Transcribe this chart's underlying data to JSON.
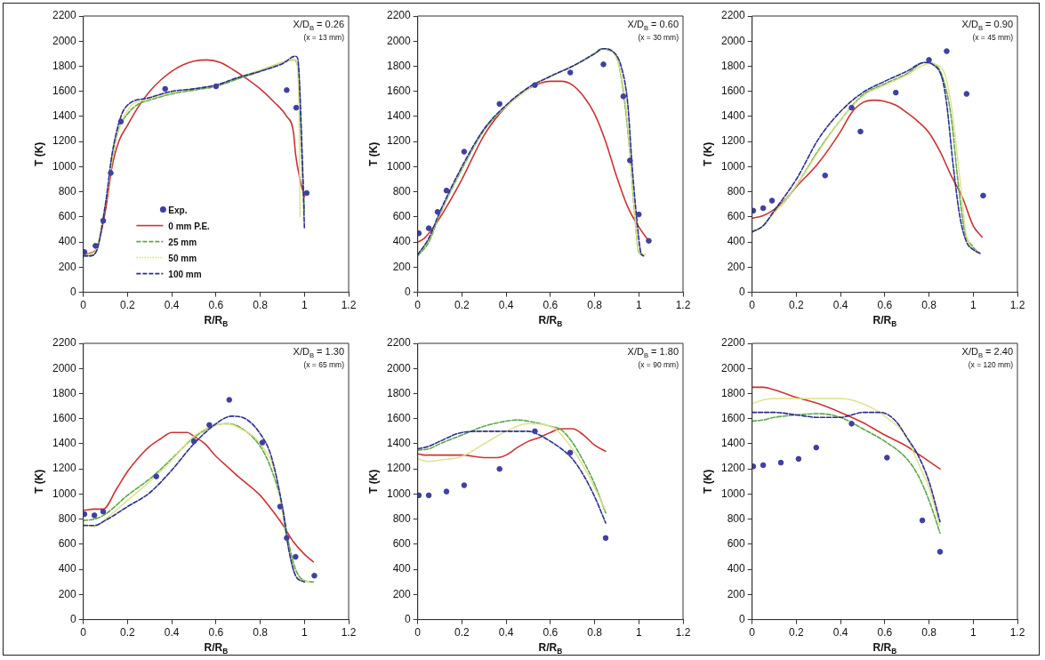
{
  "chart_data": [
    {
      "type": "line",
      "xlabel": "R/R$_{B}$",
      "ylabel": "T (K)",
      "annotations": [
        "X/D$_{B}$ = 0.26",
        "(x = 13 mm)"
      ],
      "xlim": [
        0,
        1.2
      ],
      "xticks": [
        0,
        0.2,
        0.4,
        0.6,
        0.8,
        1,
        1.2
      ],
      "ylim": [
        0,
        2200
      ],
      "yticks": [
        0,
        200,
        400,
        600,
        800,
        1000,
        1200,
        1400,
        1600,
        1800,
        2000,
        2200
      ],
      "grid": false,
      "legend": "bottom left",
      "series": [
        {
          "name": "Exp.",
          "type": "scatter",
          "marker": "circle",
          "color": "#4040a0",
          "x": [
            0.005,
            0.055,
            0.09,
            0.124,
            0.17,
            0.37,
            0.6,
            0.92,
            0.963,
            1.01
          ],
          "values": [
            320,
            370,
            570,
            950,
            1360,
            1620,
            1640,
            1610,
            1470,
            790
          ]
        },
        {
          "name": "0 mm P.E.",
          "line_style": "solid",
          "color": "#cc3333",
          "x": [
            0,
            0.03,
            0.06,
            0.1,
            0.13,
            0.16,
            0.2,
            0.25,
            0.3,
            0.35,
            0.4,
            0.45,
            0.5,
            0.56,
            0.62,
            0.68,
            0.74,
            0.8,
            0.86,
            0.92,
            0.95,
            0.96,
            0.98,
            1.0
          ],
          "values": [
            300,
            310,
            350,
            650,
            1000,
            1200,
            1330,
            1480,
            1600,
            1690,
            1760,
            1810,
            1840,
            1850,
            1830,
            1770,
            1700,
            1620,
            1520,
            1400,
            1280,
            1100,
            900,
            760
          ]
        },
        {
          "name": "25 mm",
          "line_style": "dashed",
          "color": "#5aa84a",
          "x": [
            0,
            0.03,
            0.06,
            0.1,
            0.13,
            0.16,
            0.2,
            0.25,
            0.3,
            0.4,
            0.5,
            0.6,
            0.7,
            0.8,
            0.9,
            0.95,
            0.97,
            0.99,
            1.0
          ],
          "values": [
            290,
            290,
            340,
            700,
            1050,
            1300,
            1420,
            1500,
            1530,
            1580,
            1610,
            1640,
            1700,
            1760,
            1830,
            1850,
            1800,
            1000,
            650
          ]
        },
        {
          "name": "50 mm",
          "line_style": "dotted",
          "color": "#e0e08a",
          "x": [
            0,
            0.05,
            0.1,
            0.14,
            0.2,
            0.3,
            0.4,
            0.5,
            0.6,
            0.7,
            0.8,
            0.9,
            0.96,
            0.975,
            0.98
          ],
          "values": [
            300,
            320,
            700,
            1150,
            1450,
            1540,
            1590,
            1620,
            1650,
            1710,
            1770,
            1830,
            1850,
            1500,
            600
          ]
        },
        {
          "name": "100 mm",
          "line_style": "dashed",
          "color": "#2b2e8a",
          "x": [
            0,
            0.03,
            0.06,
            0.1,
            0.13,
            0.17,
            0.2,
            0.3,
            0.4,
            0.5,
            0.6,
            0.7,
            0.8,
            0.9,
            0.96,
            0.97,
            0.99,
            1.0
          ],
          "values": [
            290,
            290,
            330,
            700,
            1100,
            1400,
            1490,
            1550,
            1600,
            1620,
            1650,
            1710,
            1760,
            1820,
            1880,
            1860,
            1100,
            510
          ]
        }
      ]
    },
    {
      "type": "line",
      "xlabel": "R/R$_{B}$",
      "ylabel": "T (K)",
      "annotations": [
        "X/D$_{B}$ = 0.60",
        "(x = 30 mm)"
      ],
      "xlim": [
        0,
        1.2
      ],
      "xticks": [
        0,
        0.2,
        0.4,
        0.6,
        0.8,
        1,
        1.2
      ],
      "ylim": [
        0,
        2200
      ],
      "yticks": [
        0,
        200,
        400,
        600,
        800,
        1000,
        1200,
        1400,
        1600,
        1800,
        2000,
        2200
      ],
      "grid": false,
      "series": [
        {
          "type": "scatter",
          "marker": "circle",
          "color": "#4040a0",
          "x": [
            0.005,
            0.05,
            0.09,
            0.13,
            0.21,
            0.37,
            0.53,
            0.69,
            0.84,
            0.93,
            0.96,
            1.0,
            1.045
          ],
          "values": [
            470,
            510,
            640,
            810,
            1120,
            1500,
            1650,
            1750,
            1815,
            1560,
            1050,
            620,
            410
          ]
        },
        {
          "line_style": "solid",
          "color": "#cc3333",
          "x": [
            0,
            0.03,
            0.08,
            0.12,
            0.2,
            0.3,
            0.4,
            0.5,
            0.6,
            0.65,
            0.7,
            0.75,
            0.8,
            0.85,
            0.9,
            0.95,
            1.0,
            1.04
          ],
          "values": [
            400,
            430,
            540,
            650,
            900,
            1250,
            1480,
            1620,
            1680,
            1680,
            1650,
            1560,
            1420,
            1200,
            920,
            680,
            520,
            420
          ]
        },
        {
          "line_style": "dashed",
          "color": "#5aa84a",
          "x": [
            0,
            0.05,
            0.1,
            0.2,
            0.3,
            0.4,
            0.5,
            0.6,
            0.7,
            0.8,
            0.83,
            0.86,
            0.9,
            0.93,
            0.96,
            0.98,
            1.0,
            1.03
          ],
          "values": [
            290,
            400,
            620,
            980,
            1290,
            1480,
            1620,
            1720,
            1800,
            1900,
            1940,
            1930,
            1870,
            1600,
            1100,
            650,
            320,
            290
          ]
        },
        {
          "line_style": "dotted",
          "color": "#e0e08a",
          "x": [
            0,
            0.05,
            0.1,
            0.2,
            0.3,
            0.4,
            0.5,
            0.6,
            0.7,
            0.8,
            0.84,
            0.9,
            0.94,
            0.97,
            1.0,
            1.03
          ],
          "values": [
            300,
            420,
            630,
            990,
            1300,
            1480,
            1620,
            1720,
            1800,
            1900,
            1940,
            1860,
            1500,
            900,
            330,
            300
          ]
        },
        {
          "line_style": "dashed",
          "color": "#2b2e8a",
          "x": [
            0,
            0.05,
            0.1,
            0.2,
            0.3,
            0.4,
            0.5,
            0.6,
            0.7,
            0.8,
            0.84,
            0.88,
            0.92,
            0.95,
            0.97,
            0.99,
            1.01,
            1.02
          ],
          "values": [
            300,
            430,
            640,
            1000,
            1300,
            1490,
            1630,
            1720,
            1800,
            1900,
            1940,
            1920,
            1800,
            1500,
            1000,
            600,
            310,
            290
          ]
        }
      ]
    },
    {
      "type": "line",
      "xlabel": "R/R$_{B}$",
      "ylabel": "T (K)",
      "annotations": [
        "X/D$_{B}$ = 0.90",
        "(x = 45 mm)"
      ],
      "xlim": [
        0,
        1.2
      ],
      "xticks": [
        0,
        0.2,
        0.4,
        0.6,
        0.8,
        1,
        1.2
      ],
      "ylim": [
        0,
        2200
      ],
      "yticks": [
        0,
        200,
        400,
        600,
        800,
        1000,
        1200,
        1400,
        1600,
        1800,
        2000,
        2200
      ],
      "grid": false,
      "series": [
        {
          "type": "scatter",
          "marker": "circle",
          "color": "#4040a0",
          "x": [
            0.005,
            0.05,
            0.09,
            0.33,
            0.45,
            0.49,
            0.65,
            0.8,
            0.88,
            0.97,
            1.045
          ],
          "values": [
            650,
            670,
            730,
            930,
            1470,
            1280,
            1590,
            1850,
            1920,
            1580,
            770
          ]
        },
        {
          "line_style": "solid",
          "color": "#cc3333",
          "x": [
            0,
            0.05,
            0.1,
            0.15,
            0.2,
            0.3,
            0.4,
            0.45,
            0.5,
            0.55,
            0.6,
            0.65,
            0.7,
            0.75,
            0.8,
            0.85,
            0.9,
            0.95,
            1.0,
            1.04
          ],
          "values": [
            590,
            610,
            660,
            740,
            840,
            1030,
            1280,
            1430,
            1510,
            1530,
            1520,
            1490,
            1430,
            1360,
            1270,
            1120,
            930,
            760,
            530,
            440
          ]
        },
        {
          "line_style": "dashed",
          "color": "#5aa84a",
          "x": [
            0,
            0.05,
            0.1,
            0.15,
            0.2,
            0.3,
            0.4,
            0.5,
            0.6,
            0.7,
            0.78,
            0.82,
            0.86,
            0.9,
            0.93,
            0.96,
            1.0,
            1.03
          ],
          "values": [
            480,
            530,
            640,
            730,
            850,
            1130,
            1370,
            1570,
            1660,
            1740,
            1830,
            1820,
            1720,
            1400,
            900,
            500,
            360,
            310
          ]
        },
        {
          "line_style": "dotted",
          "color": "#e0e08a",
          "x": [
            0,
            0.05,
            0.1,
            0.2,
            0.3,
            0.4,
            0.5,
            0.6,
            0.7,
            0.8,
            0.86,
            0.9,
            0.94,
            0.97,
            1.03
          ],
          "values": [
            480,
            530,
            630,
            850,
            1120,
            1370,
            1560,
            1650,
            1730,
            1820,
            1780,
            1500,
            900,
            450,
            310
          ]
        },
        {
          "line_style": "dashed",
          "color": "#2b2e8a",
          "x": [
            0,
            0.05,
            0.1,
            0.2,
            0.3,
            0.4,
            0.5,
            0.6,
            0.7,
            0.78,
            0.82,
            0.86,
            0.88,
            0.91,
            0.94,
            0.97,
            1.0,
            1.03
          ],
          "values": [
            480,
            530,
            650,
            900,
            1220,
            1440,
            1590,
            1680,
            1760,
            1830,
            1810,
            1700,
            1500,
            1000,
            600,
            400,
            340,
            310
          ]
        }
      ]
    },
    {
      "type": "line",
      "xlabel": "R/R$_{B}$",
      "ylabel": "T (K)",
      "annotations": [
        "X/D$_{B}$ = 1.30",
        "(x = 65 mm)"
      ],
      "xlim": [
        0,
        1.2
      ],
      "xticks": [
        0,
        0.2,
        0.4,
        0.6,
        0.8,
        1,
        1.2
      ],
      "ylim": [
        0,
        2200
      ],
      "yticks": [
        0,
        200,
        400,
        600,
        800,
        1000,
        1200,
        1400,
        1600,
        1800,
        2000,
        2200
      ],
      "grid": false,
      "series": [
        {
          "type": "scatter",
          "marker": "circle",
          "color": "#4040a0",
          "x": [
            0.005,
            0.05,
            0.09,
            0.33,
            0.5,
            0.57,
            0.66,
            0.81,
            0.89,
            0.92,
            0.96,
            1.045
          ],
          "values": [
            840,
            830,
            860,
            1140,
            1420,
            1550,
            1750,
            1410,
            900,
            650,
            500,
            350
          ]
        },
        {
          "line_style": "solid",
          "color": "#cc3333",
          "x": [
            0,
            0.05,
            0.09,
            0.15,
            0.2,
            0.25,
            0.3,
            0.35,
            0.4,
            0.47,
            0.5,
            0.55,
            0.6,
            0.65,
            0.7,
            0.8,
            0.85,
            0.9,
            0.95,
            1.0,
            1.04
          ],
          "values": [
            870,
            880,
            880,
            1040,
            1180,
            1290,
            1380,
            1440,
            1490,
            1490,
            1460,
            1400,
            1300,
            1220,
            1140,
            990,
            880,
            760,
            620,
            520,
            460
          ]
        },
        {
          "line_style": "dashed",
          "color": "#5aa84a",
          "x": [
            0,
            0.05,
            0.1,
            0.2,
            0.3,
            0.4,
            0.5,
            0.6,
            0.65,
            0.7,
            0.8,
            0.85,
            0.9,
            0.93,
            0.96,
            1.0,
            1.04
          ],
          "values": [
            790,
            800,
            840,
            990,
            1120,
            1280,
            1450,
            1550,
            1560,
            1540,
            1380,
            1200,
            900,
            600,
            400,
            310,
            300
          ]
        },
        {
          "line_style": "dotted",
          "color": "#e0e08a",
          "x": [
            0,
            0.05,
            0.1,
            0.2,
            0.3,
            0.4,
            0.5,
            0.6,
            0.65,
            0.7,
            0.8,
            0.87,
            0.92,
            0.96,
            1.02
          ],
          "values": [
            760,
            740,
            800,
            950,
            1100,
            1270,
            1460,
            1550,
            1560,
            1530,
            1400,
            1150,
            650,
            350,
            300
          ]
        },
        {
          "line_style": "dashed",
          "color": "#2b2e8a",
          "x": [
            0,
            0.05,
            0.1,
            0.2,
            0.3,
            0.4,
            0.5,
            0.6,
            0.67,
            0.72,
            0.8,
            0.85,
            0.9,
            0.93,
            0.96,
            1.0
          ],
          "values": [
            750,
            750,
            790,
            900,
            1010,
            1190,
            1400,
            1560,
            1620,
            1610,
            1480,
            1300,
            900,
            550,
            350,
            300
          ]
        }
      ]
    },
    {
      "type": "line",
      "xlabel": "R/R$_{B}$",
      "ylabel": "T (K)",
      "annotations": [
        "X/D$_{B}$ = 1.80",
        "(x = 90 mm)"
      ],
      "xlim": [
        0,
        1.2
      ],
      "xticks": [
        0,
        0.2,
        0.4,
        0.6,
        0.8,
        1,
        1.2
      ],
      "ylim": [
        0,
        2200
      ],
      "yticks": [
        0,
        200,
        400,
        600,
        800,
        1000,
        1200,
        1400,
        1600,
        1800,
        2000,
        2200
      ],
      "grid": false,
      "series": [
        {
          "type": "scatter",
          "marker": "circle",
          "color": "#4040a0",
          "x": [
            0.005,
            0.05,
            0.13,
            0.21,
            0.37,
            0.53,
            0.69,
            0.85
          ],
          "values": [
            990,
            990,
            1020,
            1070,
            1200,
            1500,
            1330,
            650
          ]
        },
        {
          "line_style": "solid",
          "color": "#cc3333",
          "x": [
            0,
            0.03,
            0.1,
            0.2,
            0.3,
            0.36,
            0.4,
            0.45,
            0.5,
            0.55,
            0.6,
            0.65,
            0.7,
            0.75,
            0.8,
            0.85
          ],
          "values": [
            1320,
            1310,
            1310,
            1310,
            1290,
            1290,
            1310,
            1370,
            1420,
            1450,
            1490,
            1520,
            1520,
            1470,
            1390,
            1340
          ]
        },
        {
          "line_style": "dashed",
          "color": "#5aa84a",
          "x": [
            0,
            0.05,
            0.1,
            0.2,
            0.3,
            0.4,
            0.45,
            0.5,
            0.6,
            0.65,
            0.7,
            0.75,
            0.8,
            0.85
          ],
          "values": [
            1350,
            1360,
            1400,
            1470,
            1540,
            1580,
            1590,
            1580,
            1540,
            1510,
            1410,
            1260,
            1080,
            850
          ]
        },
        {
          "line_style": "dotted",
          "color": "#e0e08a",
          "x": [
            0,
            0.05,
            0.1,
            0.2,
            0.3,
            0.4,
            0.5,
            0.6,
            0.7,
            0.75,
            0.8,
            0.85
          ],
          "values": [
            1280,
            1260,
            1270,
            1300,
            1400,
            1500,
            1560,
            1540,
            1360,
            1220,
            1050,
            870
          ]
        },
        {
          "line_style": "dashed",
          "color": "#2b2e8a",
          "x": [
            0,
            0.05,
            0.1,
            0.2,
            0.3,
            0.4,
            0.5,
            0.55,
            0.6,
            0.65,
            0.7,
            0.75,
            0.8,
            0.85
          ],
          "values": [
            1360,
            1380,
            1420,
            1490,
            1500,
            1500,
            1500,
            1470,
            1420,
            1360,
            1280,
            1150,
            980,
            770
          ]
        }
      ]
    },
    {
      "type": "line",
      "xlabel": "R/R$_{B}$",
      "ylabel": "T (K)",
      "annotations": [
        "X/D$_{B}$ = 2.40",
        "(x = 120 mm)"
      ],
      "xlim": [
        0,
        1.2
      ],
      "xticks": [
        0,
        0.2,
        0.4,
        0.6,
        0.8,
        1,
        1.2
      ],
      "ylim": [
        0,
        2200
      ],
      "yticks": [
        0,
        200,
        400,
        600,
        800,
        1000,
        1200,
        1400,
        1600,
        1800,
        2000,
        2200
      ],
      "grid": false,
      "series": [
        {
          "type": "scatter",
          "marker": "circle",
          "color": "#4040a0",
          "x": [
            0.005,
            0.05,
            0.13,
            0.21,
            0.29,
            0.45,
            0.61,
            0.77,
            0.85
          ],
          "values": [
            1220,
            1230,
            1250,
            1280,
            1370,
            1560,
            1290,
            790,
            540
          ]
        },
        {
          "line_style": "solid",
          "color": "#cc3333",
          "x": [
            0,
            0.05,
            0.1,
            0.15,
            0.2,
            0.3,
            0.4,
            0.5,
            0.6,
            0.7,
            0.75,
            0.8,
            0.85
          ],
          "values": [
            1850,
            1850,
            1830,
            1800,
            1770,
            1720,
            1650,
            1570,
            1470,
            1380,
            1320,
            1260,
            1200
          ]
        },
        {
          "line_style": "dashed",
          "color": "#5aa84a",
          "x": [
            0,
            0.05,
            0.1,
            0.2,
            0.3,
            0.4,
            0.5,
            0.6,
            0.7,
            0.75,
            0.8,
            0.85
          ],
          "values": [
            1580,
            1590,
            1610,
            1630,
            1640,
            1610,
            1520,
            1420,
            1280,
            1150,
            950,
            690
          ]
        },
        {
          "line_style": "dotted",
          "color": "#e0e08a",
          "x": [
            0,
            0.05,
            0.1,
            0.2,
            0.3,
            0.4,
            0.5,
            0.6,
            0.7,
            0.75,
            0.8,
            0.85
          ],
          "values": [
            1720,
            1750,
            1760,
            1760,
            1760,
            1760,
            1720,
            1620,
            1450,
            1250,
            1050,
            740
          ]
        },
        {
          "line_style": "dashed",
          "color": "#2b2e8a",
          "x": [
            0,
            0.05,
            0.1,
            0.2,
            0.3,
            0.4,
            0.45,
            0.5,
            0.58,
            0.65,
            0.7,
            0.75,
            0.8,
            0.85
          ],
          "values": [
            1650,
            1650,
            1650,
            1630,
            1610,
            1610,
            1630,
            1650,
            1650,
            1580,
            1450,
            1310,
            1100,
            780
          ]
        }
      ]
    }
  ]
}
